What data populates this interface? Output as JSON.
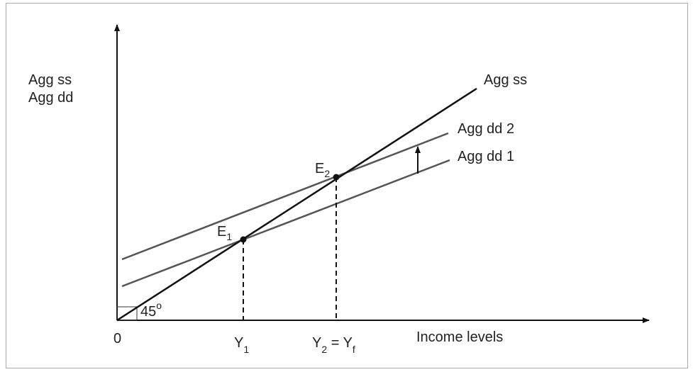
{
  "y_axis_label": [
    "Agg ss",
    "Agg dd"
  ],
  "x_axis_label": "Income levels",
  "origin": "0",
  "angle": {
    "text": "45",
    "sup": "o"
  },
  "lines": [
    {
      "label": "Agg ss"
    },
    {
      "label": "Agg dd 2"
    },
    {
      "label": "Agg dd 1"
    }
  ],
  "points": [
    {
      "letter": "E",
      "sub": "1"
    },
    {
      "letter": "E",
      "sub": "2"
    }
  ],
  "x_marks": [
    {
      "letter": "Y",
      "sub": "1"
    },
    {
      "letter": "Y",
      "sub": "2",
      "middle": " = Y",
      "sub2": "f"
    }
  ]
}
